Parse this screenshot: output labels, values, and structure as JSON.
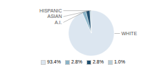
{
  "chart_data": {
    "type": "pie",
    "categories": [
      "WHITE",
      "A.I.",
      "ASIAN",
      "HISPANIC"
    ],
    "values": [
      93.4,
      2.8,
      2.8,
      1.0
    ],
    "value_labels": [
      "93.4%",
      "2.8%",
      "2.8%",
      "1.0%"
    ],
    "colors": [
      "#dce6f0",
      "#8ab4c8",
      "#1f4e6e",
      "#b8cdd8"
    ],
    "legend": "bottom"
  }
}
